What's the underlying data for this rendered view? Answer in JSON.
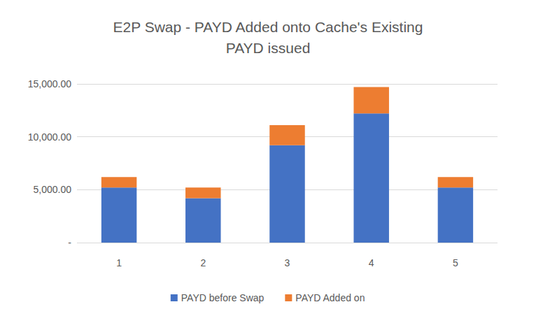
{
  "chart_data": {
    "type": "bar",
    "stacked": true,
    "title": "E2P Swap - PAYD Added onto Cache's Existing\nPAYD issued",
    "categories": [
      "1",
      "2",
      "3",
      "4",
      "5"
    ],
    "series": [
      {
        "name": "PAYD before Swap",
        "color": "#4472c4",
        "values": [
          5200,
          4200,
          9200,
          12200,
          5200
        ]
      },
      {
        "name": "PAYD Added on",
        "color": "#ed7d31",
        "values": [
          1000,
          1000,
          1900,
          2500,
          1000
        ]
      }
    ],
    "ylim": [
      0,
      15000
    ],
    "yticks": [
      {
        "value": 0,
        "label": "-"
      },
      {
        "value": 5000,
        "label": "5,000.00"
      },
      {
        "value": 10000,
        "label": "10,000.00"
      },
      {
        "value": 15000,
        "label": "15,000.00"
      }
    ],
    "grid": true,
    "legend": "bottom"
  }
}
